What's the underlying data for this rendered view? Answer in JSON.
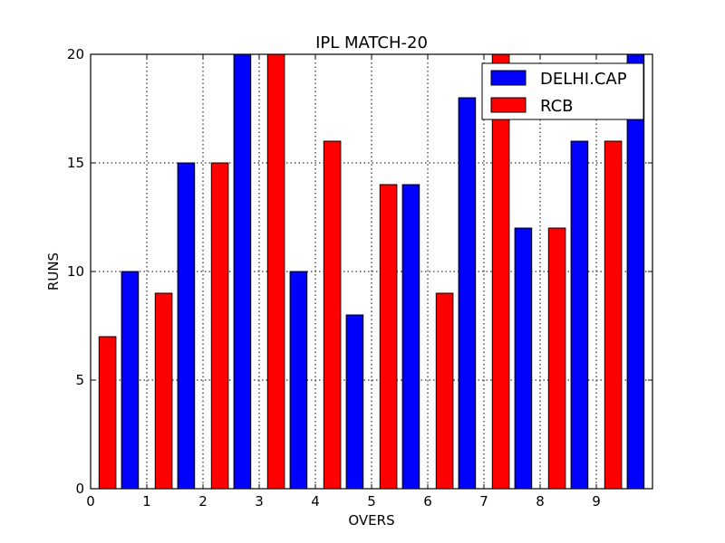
{
  "chart_data": {
    "type": "bar",
    "title": "IPL MATCH-20",
    "xlabel": "OVERS",
    "ylabel": "RUNS",
    "xlim": [
      0,
      10
    ],
    "ylim": [
      0,
      20
    ],
    "xticks": [
      0,
      1,
      2,
      3,
      4,
      5,
      6,
      7,
      8,
      9
    ],
    "yticks": [
      0,
      5,
      10,
      15,
      20
    ],
    "grid": true,
    "legend_position": "top-right",
    "series": [
      {
        "name": "RCB",
        "color": "#ff0000",
        "x": [
          0.3,
          1.3,
          2.3,
          3.3,
          4.3,
          5.3,
          6.3,
          7.3,
          8.3,
          9.3
        ],
        "values": [
          7,
          9,
          15,
          20,
          16,
          14,
          9,
          20,
          12,
          16
        ]
      },
      {
        "name": "DELHI.CAP",
        "color": "#0000ff",
        "x": [
          0.7,
          1.7,
          2.7,
          3.7,
          4.7,
          5.7,
          6.7,
          7.7,
          8.7,
          9.7
        ],
        "values": [
          10,
          15,
          20,
          10,
          8,
          14,
          18,
          12,
          16,
          20
        ]
      }
    ],
    "legend_order": [
      "DELHI.CAP",
      "RCB"
    ]
  }
}
